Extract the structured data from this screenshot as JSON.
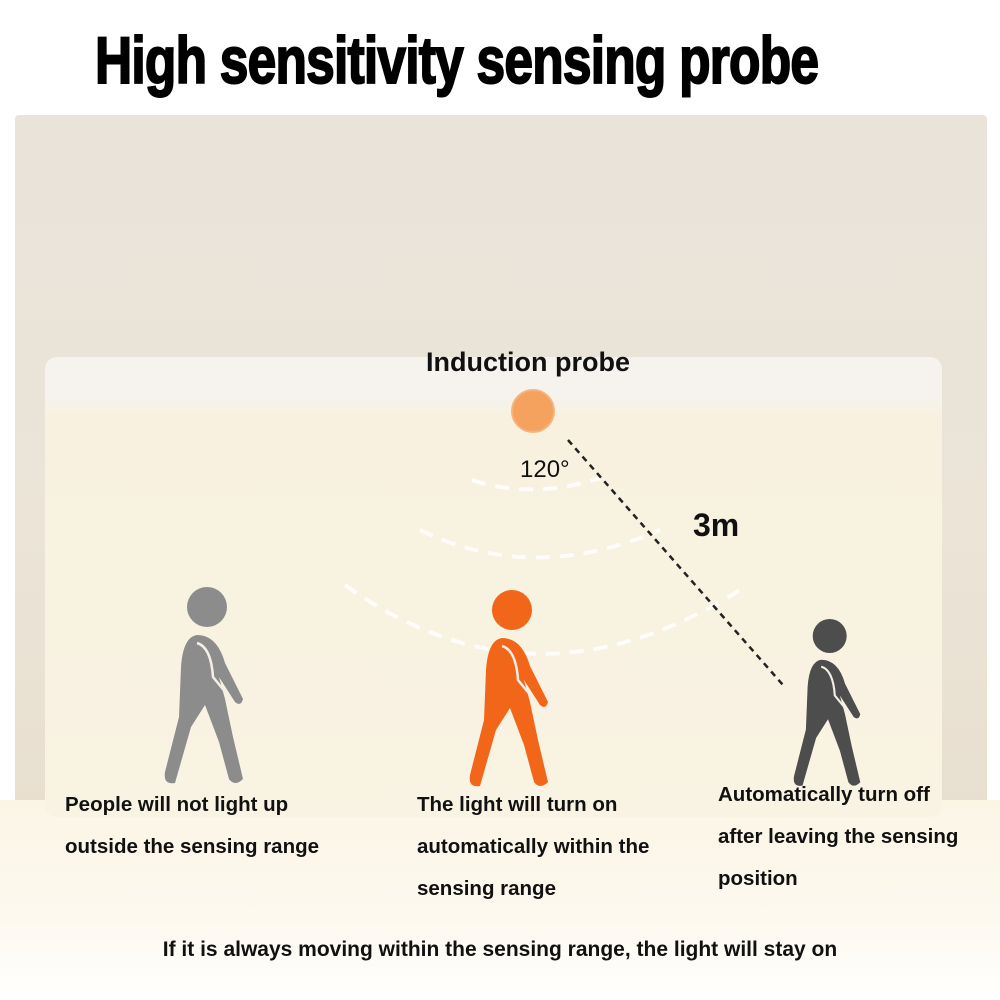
{
  "title": "High sensitivity sensing probe",
  "diagram": {
    "probe_label": "Induction probe",
    "angle_label": "120°",
    "distance_label": "3m",
    "probe_color": "#f5a25e",
    "figures": [
      {
        "state": "outside range",
        "color": "#8c8c8c"
      },
      {
        "state": "inside range",
        "color": "#f2661a"
      },
      {
        "state": "left range",
        "color": "#4d4d4d"
      }
    ]
  },
  "captions": [
    {
      "lines": [
        "People will not light up",
        "outside the sensing range"
      ]
    },
    {
      "lines": [
        "The light will turn on",
        "automatically within the",
        "sensing range"
      ]
    },
    {
      "lines": [
        "Automatically turn off",
        "after leaving the sensing",
        "position"
      ]
    }
  ],
  "footer": "If it is always moving within the sensing range, the light will stay on"
}
